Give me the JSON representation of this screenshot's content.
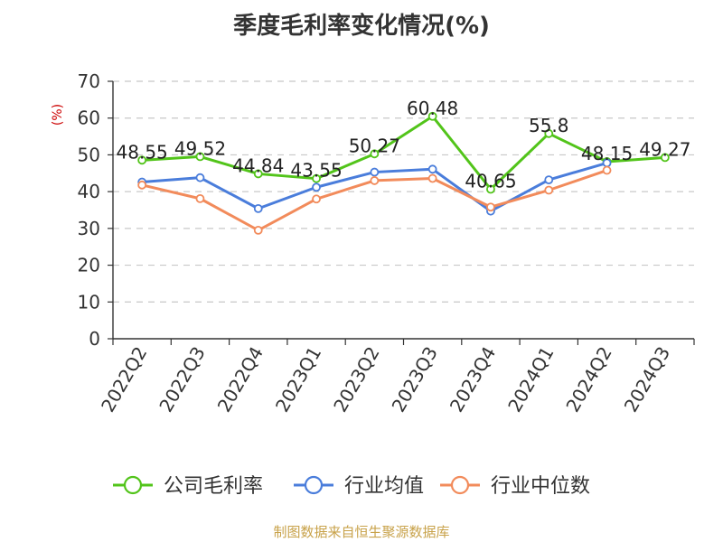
{
  "chart_data": {
    "type": "line",
    "title": "季度毛利率变化情况(%)",
    "ylabel": "(%)",
    "xlabel": "",
    "ylim": [
      0,
      70
    ],
    "yticks": [
      0,
      10,
      20,
      30,
      40,
      50,
      60,
      70
    ],
    "categories": [
      "2022Q2",
      "2022Q3",
      "2022Q4",
      "2023Q1",
      "2023Q2",
      "2023Q3",
      "2023Q4",
      "2024Q1",
      "2024Q2",
      "2024Q3"
    ],
    "grid": true,
    "legend_position": "bottom",
    "series": [
      {
        "name": "公司毛利率",
        "color": "#52c41a",
        "labeled": true,
        "values": [
          48.55,
          49.52,
          44.84,
          43.55,
          50.27,
          60.48,
          40.65,
          55.8,
          48.15,
          49.27
        ]
      },
      {
        "name": "行业均值",
        "color": "#4a7ddb",
        "labeled": false,
        "values": [
          42.6,
          43.8,
          35.4,
          41.2,
          45.3,
          46.1,
          34.7,
          43.2,
          47.8,
          null
        ]
      },
      {
        "name": "行业中位数",
        "color": "#f28b5b",
        "labeled": false,
        "values": [
          41.8,
          38.1,
          29.5,
          38.0,
          43.0,
          43.6,
          35.8,
          40.4,
          45.8,
          null
        ]
      }
    ]
  },
  "footer": {
    "source": "制图数据来自恒生聚源数据库"
  }
}
